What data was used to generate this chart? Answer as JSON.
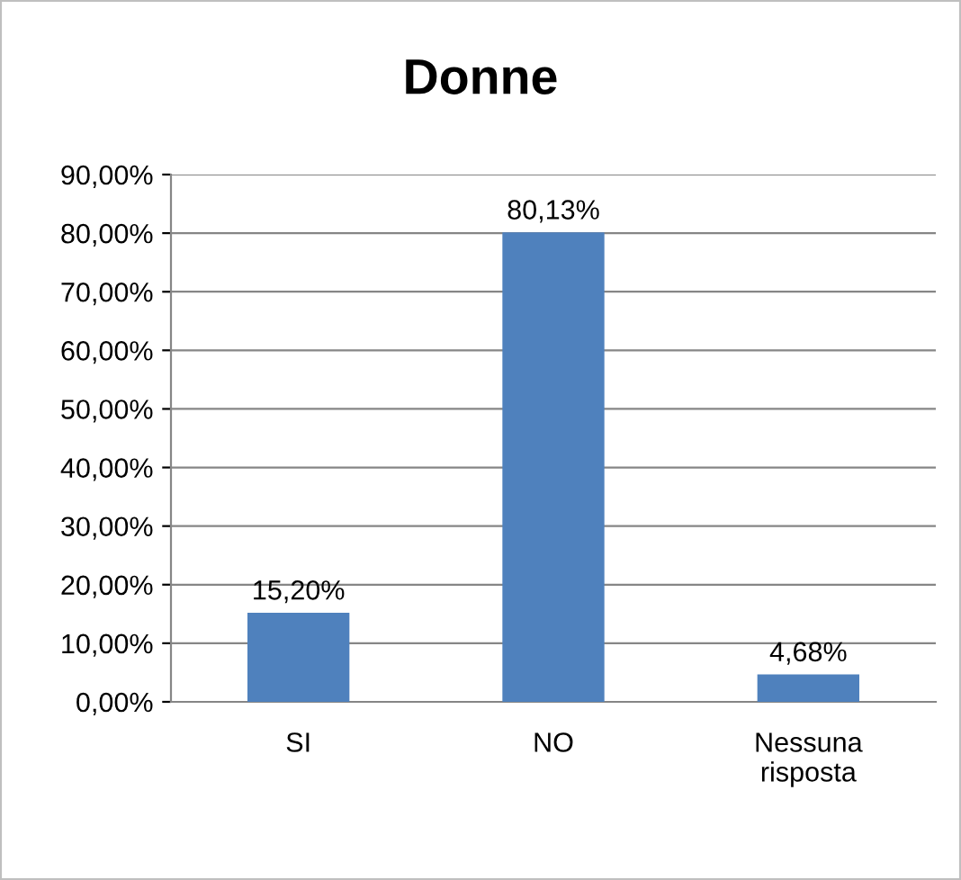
{
  "chart_data": {
    "type": "bar",
    "title": "Donne",
    "categories": [
      "SI",
      "NO",
      "Nessuna\nrisposta"
    ],
    "values": [
      15.2,
      80.13,
      4.68
    ],
    "value_labels": [
      "15,20%",
      "80,13%",
      "4,68%"
    ],
    "color": "#4f81bd",
    "ylim": [
      0,
      90
    ],
    "yticks": [
      {
        "value": 0,
        "label": "0,00%"
      },
      {
        "value": 10,
        "label": "10,00%"
      },
      {
        "value": 20,
        "label": "20,00%"
      },
      {
        "value": 30,
        "label": "30,00%"
      },
      {
        "value": 40,
        "label": "40,00%"
      },
      {
        "value": 50,
        "label": "50,00%"
      },
      {
        "value": 60,
        "label": "60,00%"
      },
      {
        "value": 70,
        "label": "70,00%"
      },
      {
        "value": 80,
        "label": "80,00%"
      },
      {
        "value": 90,
        "label": "90,00%"
      }
    ],
    "grid": "y",
    "legend": false
  }
}
